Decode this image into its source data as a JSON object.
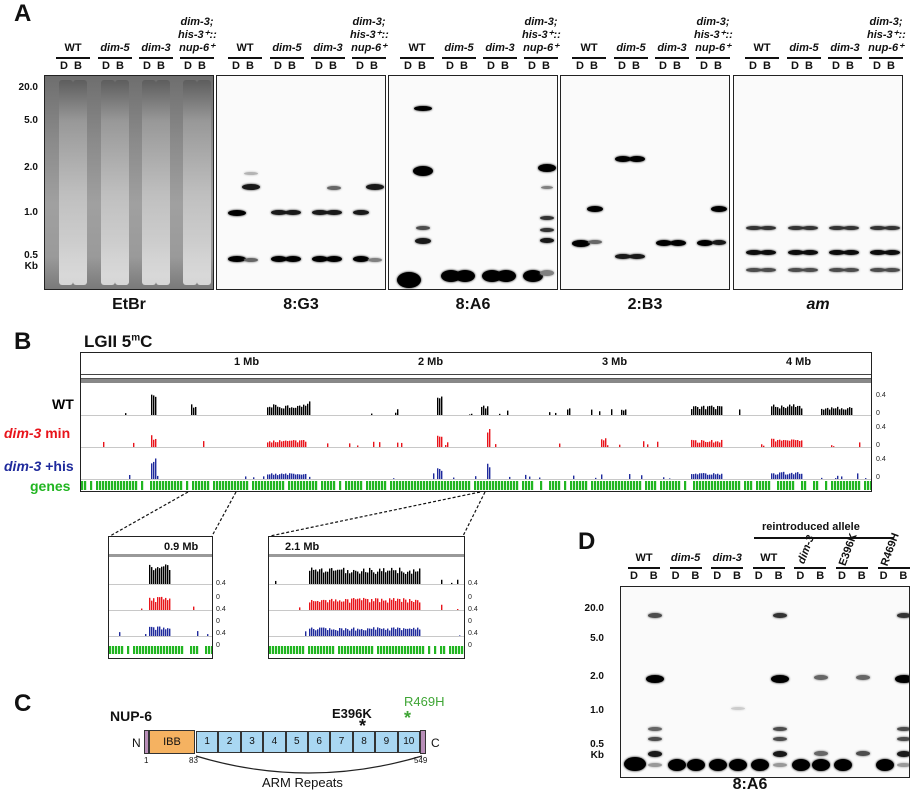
{
  "panel_letters": {
    "a": "A",
    "b": "B",
    "c": "C",
    "d": "D"
  },
  "panel_a": {
    "gels": [
      {
        "probe": "EtBr",
        "strains": [
          {
            "name": "WT",
            "italic": false
          },
          {
            "name": "dim-5",
            "italic": true
          },
          {
            "name": "dim-3",
            "italic": true
          },
          {
            "name": "dim-3;\nhis-3⁺::\nnup-6⁺",
            "italic": true
          }
        ],
        "size_markers": [
          "20.0",
          "5.0",
          "2.0",
          "1.0",
          "0.5",
          "Kb"
        ]
      },
      {
        "probe": "8:G3",
        "strains": [
          {
            "name": "WT",
            "italic": false
          },
          {
            "name": "dim-5",
            "italic": true
          },
          {
            "name": "dim-3",
            "italic": true
          },
          {
            "name": "dim-3;\nhis-3⁺::\nnup-6⁺",
            "italic": true
          }
        ]
      },
      {
        "probe": "8:A6",
        "strains": [
          {
            "name": "WT",
            "italic": false
          },
          {
            "name": "dim-5",
            "italic": true
          },
          {
            "name": "dim-3",
            "italic": true
          },
          {
            "name": "dim-3;\nhis-3⁺::\nnup-6⁺",
            "italic": true
          }
        ]
      },
      {
        "probe": "2:B3",
        "strains": [
          {
            "name": "WT",
            "italic": false
          },
          {
            "name": "dim-5",
            "italic": true
          },
          {
            "name": "dim-3",
            "italic": true
          },
          {
            "name": "dim-3;\nhis-3⁺::\nnup-6⁺",
            "italic": true
          }
        ]
      },
      {
        "probe": "am",
        "probe_italic": true,
        "strains": [
          {
            "name": "WT",
            "italic": false
          },
          {
            "name": "dim-5",
            "italic": true
          },
          {
            "name": "dim-3",
            "italic": true
          },
          {
            "name": "dim-3;\nhis-3⁺::\nnup-6⁺",
            "italic": true
          }
        ]
      }
    ],
    "lane_letters": [
      "D",
      "B"
    ]
  },
  "panel_b": {
    "title": "LGII 5",
    "title_sup": "m",
    "title_end": "C",
    "ruler_ticks": [
      "1 Mb",
      "2 Mb",
      "3 Mb",
      "4 Mb"
    ],
    "tracks": [
      {
        "label": "WT",
        "color": "#000000",
        "italic": false
      },
      {
        "label_italic": "dim-3",
        "label_rest": " min",
        "color": "#e8141b"
      },
      {
        "label_italic": "dim-3",
        "label_rest": " +his",
        "color": "#1f2a9c"
      }
    ],
    "genes_label": "genes",
    "genes_color": "#21b521",
    "scale_top": "0.4",
    "scale_bottom": "0",
    "zoom_left": "0.9 Mb",
    "zoom_right": "2.1 Mb"
  },
  "panel_c": {
    "protein": "NUP-6",
    "n_term": "N",
    "c_term": "C",
    "ibb": "IBB",
    "repeats": [
      "1",
      "2",
      "3",
      "4",
      "5",
      "6",
      "7",
      "8",
      "9",
      "10"
    ],
    "positions": [
      "1",
      "83",
      "549"
    ],
    "mut1": "E396K",
    "mut1_mark": "*",
    "mut2": "R469H",
    "mut2_mark": "*",
    "mut2_color": "#3fa535",
    "ibb_color": "#f5b261",
    "repeat_color": "#a9d7f2",
    "arm_label": "ARM Repeats"
  },
  "panel_d": {
    "reintroduced_label": "reintroduced allele",
    "strains": [
      {
        "name": "WT",
        "italic": false
      },
      {
        "name": "dim-5",
        "italic": true
      },
      {
        "name": "dim-3",
        "italic": true
      },
      {
        "name": "WT",
        "italic": false
      },
      {
        "name": "dim-3",
        "italic": true
      },
      {
        "name": "E396K",
        "italic": false
      },
      {
        "name": "R469H",
        "italic": false
      }
    ],
    "size_markers": [
      "20.0",
      "5.0",
      "2.0",
      "1.0",
      "0.5",
      "Kb"
    ],
    "probe": "8:A6"
  }
}
